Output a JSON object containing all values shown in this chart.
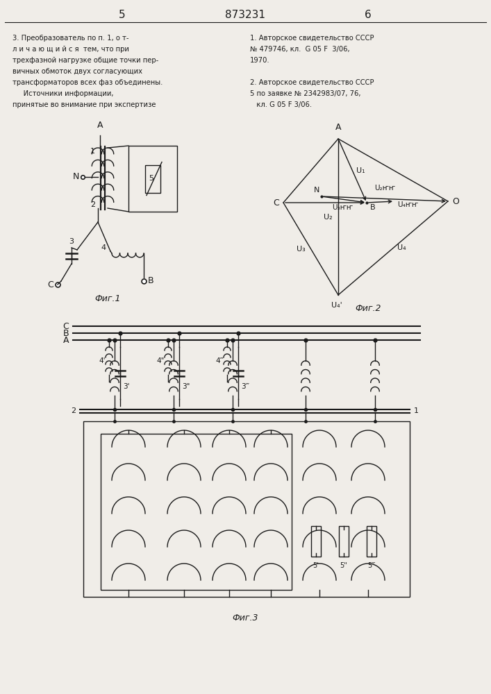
{
  "page_width": 7.07,
  "page_height": 10.0,
  "bg_color": "#f0ede8",
  "line_color": "#1a1a1a",
  "header": {
    "left_num": "5",
    "center_num": "873231",
    "right_num": "6"
  },
  "text_left": [
    "3. Преобразователь по п. 1, о т-",
    "л и ч а ю щ и й с я  тем, что при",
    "трехфазной нагрузке общие точки пер-",
    "вичных обмоток двух согласующих",
    "трансформаторов всех фаз объединены.",
    "     Источники информации,",
    "принятые во внимание при экспертизе"
  ],
  "text_right": [
    "1. Авторское свидетельство СССР",
    "№ 479746, кл.  G 05 F  3/06,",
    "1970.",
    "",
    "2. Авторское свидетельство СССР",
    "5 по заявке № 2342983/07, 76,",
    "   кл. G 05 F 3/06."
  ],
  "fig1_label": "Фиг.1",
  "fig2_label": "Фиг.2",
  "fig3_label": "Фиг.3"
}
